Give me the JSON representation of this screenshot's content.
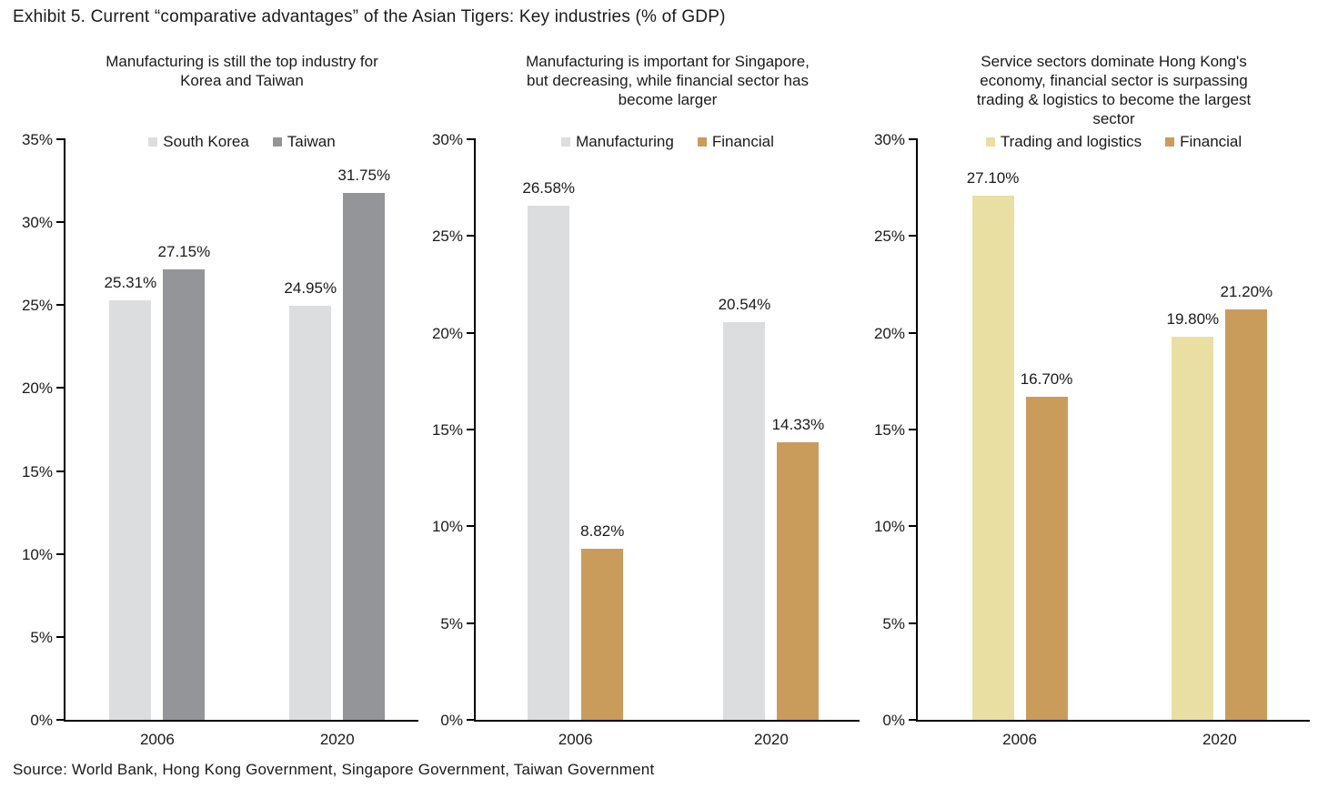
{
  "page": {
    "title": "Exhibit 5. Current “comparative advantages” of the Asian Tigers: Key industries (% of GDP)",
    "source": "Source: World Bank, Hong Kong Government, Singapore Government, Taiwan Government"
  },
  "colors": {
    "light_gray": "#dcddde",
    "dark_gray": "#939598",
    "light_tan": "#eadfa3",
    "tan": "#c99c5c",
    "axis": "#000000",
    "text": "#1a1a1a"
  },
  "chart_data": [
    {
      "type": "bar",
      "title": "Manufacturing is still the top industry for Korea and Taiwan",
      "title_lines": [
        "Manufacturing is still the top industry for",
        "Korea and Taiwan"
      ],
      "categories": [
        "2006",
        "2020"
      ],
      "series": [
        {
          "name": "South Korea",
          "color": "#dcddde",
          "values": [
            25.31,
            24.95
          ],
          "value_labels": [
            "25.31%",
            "24.95%"
          ]
        },
        {
          "name": "Taiwan",
          "color": "#939598",
          "values": [
            27.15,
            31.75
          ],
          "value_labels": [
            "27.15%",
            "31.75%"
          ]
        }
      ],
      "ylim": [
        0,
        35
      ],
      "ytick_step": 5,
      "ytick_labels": [
        "0%",
        "5%",
        "10%",
        "15%",
        "20%",
        "25%",
        "30%",
        "35%"
      ],
      "legend_position": "top-center",
      "grid": false
    },
    {
      "type": "bar",
      "title": "Manufacturing is important for Singapore, but decreasing, while financial sector has become larger",
      "title_lines": [
        "Manufacturing is important for Singapore,",
        "but decreasing, while financial sector has",
        "become larger"
      ],
      "categories": [
        "2006",
        "2020"
      ],
      "series": [
        {
          "name": "Manufacturing",
          "color": "#dcddde",
          "values": [
            26.58,
            20.54
          ],
          "value_labels": [
            "26.58%",
            "20.54%"
          ]
        },
        {
          "name": "Financial",
          "color": "#c99c5c",
          "values": [
            8.82,
            14.33
          ],
          "value_labels": [
            "8.82%",
            "14.33%"
          ]
        }
      ],
      "ylim": [
        0,
        30
      ],
      "ytick_step": 5,
      "ytick_labels": [
        "0%",
        "5%",
        "10%",
        "15%",
        "20%",
        "25%",
        "30%"
      ],
      "legend_position": "top-center",
      "grid": false
    },
    {
      "type": "bar",
      "title": "Service sectors dominate Hong Kong's economy, financial sector is surpassing trading & logistics to become the largest sector",
      "title_lines": [
        "Service sectors dominate Hong Kong's",
        "economy, financial sector is surpassing",
        "trading & logistics to become the largest",
        "sector"
      ],
      "categories": [
        "2006",
        "2020"
      ],
      "series": [
        {
          "name": "Trading and logistics",
          "color": "#eadfa3",
          "values": [
            27.1,
            19.8
          ],
          "value_labels": [
            "27.10%",
            "19.80%"
          ]
        },
        {
          "name": "Financial",
          "color": "#c99c5c",
          "values": [
            16.7,
            21.2
          ],
          "value_labels": [
            "16.70%",
            "21.20%"
          ]
        }
      ],
      "ylim": [
        0,
        30
      ],
      "ytick_step": 5,
      "ytick_labels": [
        "0%",
        "5%",
        "10%",
        "15%",
        "20%",
        "25%",
        "30%"
      ],
      "legend_position": "top-center",
      "grid": false
    }
  ]
}
